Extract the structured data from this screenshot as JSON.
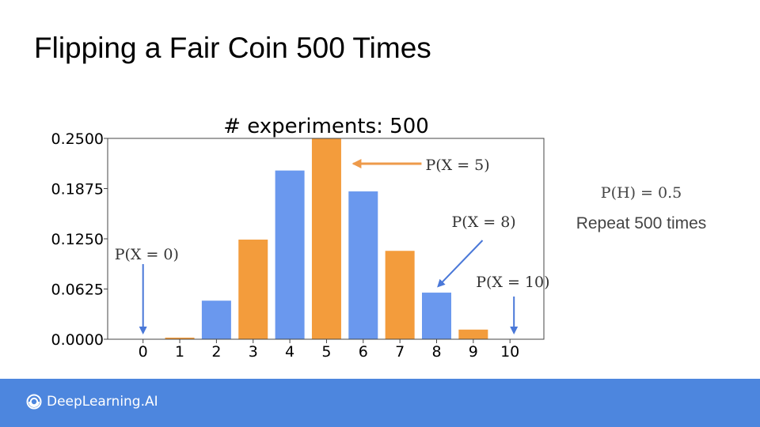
{
  "slide": {
    "title": "Flipping a Fair Coin 500 Times",
    "prob_text": "P(H) = 0.5",
    "repeat_text": "Repeat 500 times",
    "brand": "DeepLearning.AI"
  },
  "colors": {
    "blue": "#6a98ee",
    "orange": "#f39c3c",
    "annotation_blue": "#4a78d8",
    "annotation_orange": "#ee9a4a",
    "footer": "#4d86de"
  },
  "icons": [
    "deeplearning-logo-icon"
  ],
  "chart_data": {
    "type": "bar",
    "title": "# experiments: 500",
    "xlabel": "",
    "ylabel": "",
    "categories": [
      "0",
      "1",
      "2",
      "3",
      "4",
      "5",
      "6",
      "7",
      "8",
      "9",
      "10"
    ],
    "values": [
      0.0,
      0.002,
      0.048,
      0.124,
      0.21,
      0.25,
      0.184,
      0.11,
      0.058,
      0.012,
      0.0
    ],
    "bar_colors": [
      "blue",
      "orange",
      "blue",
      "orange",
      "blue",
      "orange",
      "blue",
      "orange",
      "blue",
      "orange",
      "blue"
    ],
    "ylim": [
      0,
      0.25
    ],
    "yticks": [
      "0.0000",
      "0.0625",
      "0.1250",
      "0.1875",
      "0.2500"
    ],
    "grid": false,
    "legend": "none",
    "annotations": [
      {
        "text": "P(X = 0)",
        "target": "0",
        "color": "blue"
      },
      {
        "text": "P(X = 5)",
        "target": "5",
        "color": "orange"
      },
      {
        "text": "P(X = 8)",
        "target": "8",
        "color": "blue"
      },
      {
        "text": "P(X = 10)",
        "target": "10",
        "color": "blue"
      }
    ]
  }
}
